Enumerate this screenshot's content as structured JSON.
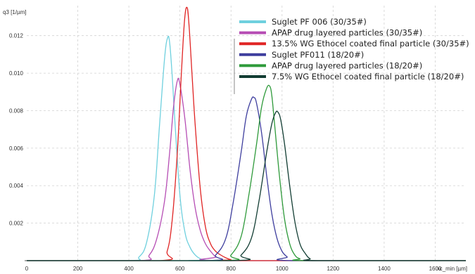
{
  "chart_data": {
    "type": "line",
    "ylabel": "q3 [1/µm]",
    "xlabel": "xc_min [µm]",
    "xlim": [
      0,
      1720
    ],
    "ylim": [
      0,
      0.0136
    ],
    "xticks": [
      0,
      200,
      400,
      600,
      800,
      1000,
      1200,
      1400,
      1600
    ],
    "xtick_labels": [
      "0",
      "200",
      "400",
      "600",
      "800",
      "1000",
      "1200",
      "1400",
      "1600"
    ],
    "yticks": [
      0.002,
      0.004,
      0.006,
      0.008,
      0.01,
      0.012
    ],
    "ytick_labels": [
      "0.002",
      "0.004",
      "0.006",
      "0.008",
      "0.010",
      "0.012"
    ],
    "grid": true,
    "legend_position": "top-right",
    "series": [
      {
        "name": "Suglet PF 006 (30/35#)",
        "color": "#6fd0de",
        "x": [
          0,
          400,
          440,
          470,
          500,
          520,
          540,
          552,
          560,
          570,
          580,
          600,
          620,
          640,
          660,
          680,
          700,
          720,
          1720
        ],
        "y": [
          0,
          0,
          0.0002,
          0.001,
          0.0035,
          0.0072,
          0.0108,
          0.0119,
          0.0116,
          0.0098,
          0.0075,
          0.0035,
          0.0015,
          0.0007,
          0.0003,
          0.0001,
          3e-05,
          0,
          0
        ]
      },
      {
        "name": "APAP drug layered particles (30/35#)",
        "color": "#b64db4",
        "x": [
          0,
          440,
          480,
          510,
          540,
          560,
          575,
          590,
          600,
          620,
          640,
          660,
          680,
          700,
          720,
          740,
          760,
          1720
        ],
        "y": [
          0,
          0,
          0.0003,
          0.0012,
          0.0032,
          0.0058,
          0.0082,
          0.0096,
          0.0094,
          0.0075,
          0.0048,
          0.0028,
          0.0016,
          0.0009,
          0.0005,
          0.0002,
          0,
          0
        ]
      },
      {
        "name": "13.5% WG Ethocel coated final particle (30/35#)",
        "color": "#e02424",
        "x": [
          0,
          520,
          550,
          570,
          590,
          605,
          618,
          628,
          636,
          648,
          660,
          680,
          700,
          720,
          740,
          760,
          780,
          800,
          820,
          1720
        ],
        "y": [
          0,
          0,
          0.0005,
          0.0022,
          0.0058,
          0.0098,
          0.0128,
          0.0135,
          0.0125,
          0.0098,
          0.0072,
          0.0038,
          0.0018,
          0.0009,
          0.0005,
          0.0003,
          0.00015,
          5e-05,
          0,
          0
        ]
      },
      {
        "name": "Suglet PF011 (18/20#)",
        "color": "#3e3e9e",
        "x": [
          0,
          700,
          740,
          780,
          810,
          840,
          860,
          880,
          890,
          900,
          920,
          940,
          960,
          980,
          1000,
          1020,
          1040,
          1720
        ],
        "y": [
          0,
          0,
          0.0003,
          0.0012,
          0.0032,
          0.0058,
          0.0077,
          0.0086,
          0.0087,
          0.0084,
          0.0068,
          0.0045,
          0.0025,
          0.0012,
          0.0005,
          0.0002,
          0,
          0
        ]
      },
      {
        "name": "APAP drug layered particles (18/20#)",
        "color": "#2e9a3a",
        "x": [
          0,
          760,
          800,
          840,
          870,
          900,
          920,
          940,
          952,
          960,
          970,
          990,
          1010,
          1030,
          1050,
          1070,
          1100,
          1720
        ],
        "y": [
          0,
          0,
          0.0003,
          0.0013,
          0.0035,
          0.0062,
          0.0082,
          0.0092,
          0.0093,
          0.0088,
          0.0074,
          0.0045,
          0.0022,
          0.0009,
          0.0003,
          0.0001,
          0,
          0
        ]
      },
      {
        "name": "7.5% WG Ethocel coated final particle (18/20#)",
        "color": "#123d33",
        "x": [
          0,
          800,
          840,
          880,
          910,
          940,
          960,
          975,
          985,
          995,
          1010,
          1030,
          1050,
          1070,
          1090,
          1110,
          1140,
          1720
        ],
        "y": [
          0,
          0,
          0.0003,
          0.0012,
          0.0032,
          0.0058,
          0.0073,
          0.0079,
          0.0079,
          0.0075,
          0.0062,
          0.004,
          0.0021,
          0.0009,
          0.0004,
          0.0001,
          0,
          0
        ]
      }
    ]
  }
}
